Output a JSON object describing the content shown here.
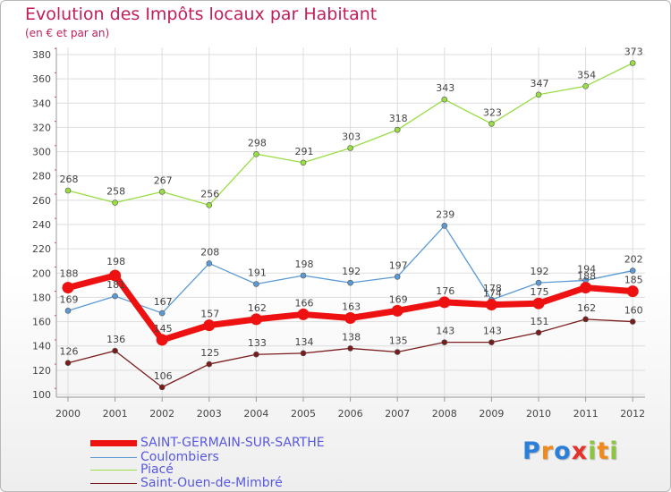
{
  "chart_data": {
    "type": "line",
    "title": "Evolution des Impôts locaux par Habitant",
    "subtitle": "(en € et par an)",
    "xlabel": "",
    "ylabel": "",
    "x": [
      "2000",
      "2001",
      "2002",
      "2003",
      "2004",
      "2005",
      "2006",
      "2007",
      "2008",
      "2009",
      "2010",
      "2011",
      "2012"
    ],
    "ylim": [
      100,
      380
    ],
    "yticks": [
      100,
      120,
      140,
      160,
      180,
      200,
      220,
      240,
      260,
      280,
      300,
      320,
      340,
      360,
      380
    ],
    "grid": true,
    "legend_position": "bottom-left",
    "series": [
      {
        "name": "Piacé",
        "color": "#99dd44",
        "values": [
          268,
          258,
          267,
          256,
          298,
          291,
          303,
          318,
          343,
          323,
          347,
          354,
          373
        ]
      },
      {
        "name": "Coulombiers",
        "color": "#5b9ad4",
        "values": [
          169,
          181,
          167,
          208,
          191,
          198,
          192,
          197,
          239,
          178,
          192,
          194,
          202
        ]
      },
      {
        "name": "Saint-Ouen-de-Mimbré",
        "color": "#7a1c1c",
        "values": [
          126,
          136,
          106,
          125,
          133,
          134,
          138,
          135,
          143,
          143,
          151,
          162,
          160
        ]
      },
      {
        "name": "SAINT-GERMAIN-SUR-SARTHE",
        "color": "#ee1111",
        "values": [
          188,
          198,
          145,
          157,
          162,
          166,
          163,
          169,
          176,
          174,
          175,
          188,
          185
        ]
      }
    ]
  },
  "legend": {
    "items": [
      {
        "label": "SAINT-GERMAIN-SUR-SARTHE",
        "color": "#ee1111",
        "thickness": 7
      },
      {
        "label": "Coulombiers",
        "color": "#5b9ad4",
        "thickness": 1
      },
      {
        "label": "Piacé",
        "color": "#99dd44",
        "thickness": 1
      },
      {
        "label": "Saint-Ouen-de-Mimbré",
        "color": "#7a1c1c",
        "thickness": 1
      }
    ]
  },
  "logo": {
    "letters": [
      "P",
      "r",
      "o",
      "x",
      "i",
      "t",
      "i"
    ],
    "colors": [
      "#2b7fd8",
      "#f08a1c",
      "#2b7fd8",
      "#e5332a",
      "#8cc63f",
      "#f08a1c",
      "#8cc63f"
    ]
  },
  "colors": {
    "title": "#c21d5a",
    "axis": "#999999",
    "grid": "#dddddd",
    "label": "#444444"
  }
}
